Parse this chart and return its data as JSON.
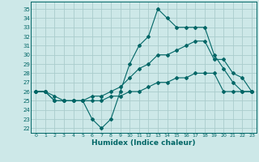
{
  "xlabel": "Humidex (Indice chaleur)",
  "background_color": "#cde8e8",
  "line_color": "#006666",
  "grid_color": "#aacccc",
  "xlim": [
    -0.5,
    23.5
  ],
  "ylim": [
    21.5,
    35.8
  ],
  "xticks": [
    0,
    1,
    2,
    3,
    4,
    5,
    6,
    7,
    8,
    9,
    10,
    11,
    12,
    13,
    14,
    15,
    16,
    17,
    18,
    19,
    20,
    21,
    22,
    23
  ],
  "yticks": [
    22,
    23,
    24,
    25,
    26,
    27,
    28,
    29,
    30,
    31,
    32,
    33,
    34,
    35
  ],
  "line1_y": [
    26,
    26,
    25,
    25,
    25,
    25,
    23,
    22,
    23,
    26,
    29,
    31,
    32,
    35,
    34,
    33,
    33,
    33,
    33,
    30,
    28.5,
    27,
    26,
    26
  ],
  "line2_y": [
    26,
    26,
    25,
    25,
    25,
    25,
    25.5,
    25.5,
    26,
    26.5,
    27.5,
    28.5,
    29,
    30,
    30,
    30.5,
    31,
    31.5,
    31.5,
    29.5,
    29.5,
    28,
    27.5,
    26
  ],
  "line3_y": [
    26,
    26,
    25.5,
    25,
    25,
    25,
    25,
    25,
    25.5,
    25.5,
    26,
    26,
    26.5,
    27,
    27,
    27.5,
    27.5,
    28,
    28,
    28,
    26,
    26,
    26,
    26
  ]
}
